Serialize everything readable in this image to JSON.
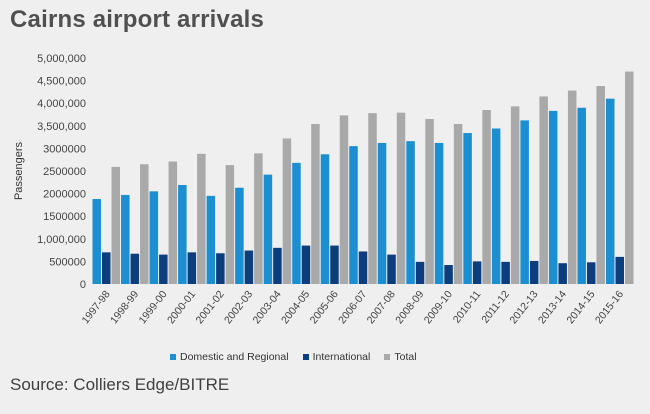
{
  "title": "Cairns airport arrivals",
  "source": "Source: Colliers Edge/BITRE",
  "chart_data": {
    "type": "bar",
    "title": "Cairns airport arrivals",
    "xlabel": "",
    "ylabel": "Passengers",
    "ylim": [
      0,
      5000000
    ],
    "yticks": [
      0,
      500000,
      1000000,
      1500000,
      2000000,
      2500000,
      3000000,
      3500000,
      4000000,
      4500000,
      5000000
    ],
    "ytick_labels": [
      "0",
      "500000",
      "1,000,000",
      "1500000",
      "2000000",
      "2500000",
      "3000000",
      "3,500,000",
      "4,000,000",
      "4,500,000",
      "5,000,000"
    ],
    "grid": false,
    "legend_position": "bottom",
    "categories": [
      "1997-98",
      "1998-99",
      "1999-00",
      "2000-01",
      "2001-02",
      "2002-03",
      "2003-04",
      "2004-05",
      "2005-06",
      "2006-07",
      "2007-08",
      "2008-09",
      "2009-10",
      "2010-11",
      "2011-12",
      "2012-13",
      "2013-14",
      "2014-15",
      "2015-16"
    ],
    "series": [
      {
        "name": "Domestic and Regional",
        "color": "#1b8fd2",
        "values": [
          1880000,
          1970000,
          2050000,
          2190000,
          1950000,
          2130000,
          2420000,
          2680000,
          2870000,
          3050000,
          3120000,
          3160000,
          3120000,
          3340000,
          3440000,
          3620000,
          3830000,
          3900000,
          4100000
        ]
      },
      {
        "name": "International",
        "color": "#0c3d7c",
        "values": [
          700000,
          670000,
          650000,
          700000,
          680000,
          740000,
          800000,
          850000,
          850000,
          720000,
          650000,
          490000,
          420000,
          500000,
          490000,
          510000,
          460000,
          480000,
          600000
        ]
      },
      {
        "name": "Total",
        "color": "#a9a9a9",
        "values": [
          2590000,
          2650000,
          2710000,
          2880000,
          2630000,
          2890000,
          3220000,
          3540000,
          3730000,
          3780000,
          3790000,
          3650000,
          3540000,
          3850000,
          3930000,
          4150000,
          4280000,
          4380000,
          4700000
        ]
      }
    ]
  }
}
